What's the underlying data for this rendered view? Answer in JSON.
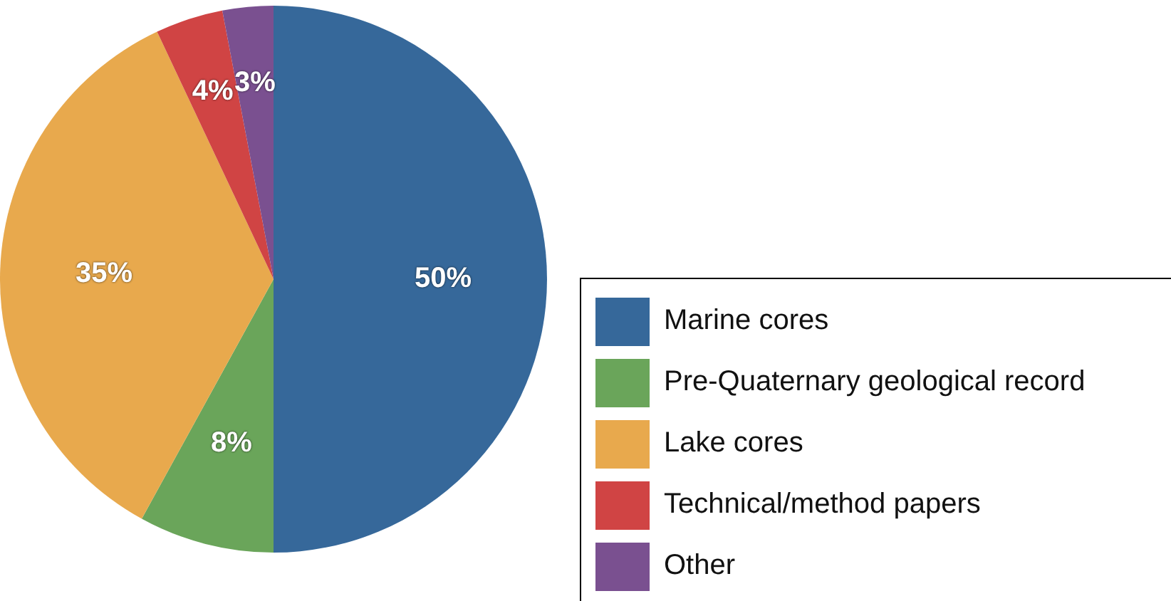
{
  "chart_data": {
    "type": "pie",
    "categories": [
      "Marine cores",
      "Pre-Quaternary geological record",
      "Lake cores",
      "Technical/method papers",
      "Other"
    ],
    "values": [
      50,
      8,
      35,
      4,
      3
    ],
    "colors": [
      "#36689a",
      "#6aa55a",
      "#e8a94d",
      "#d04444",
      "#7a5090"
    ],
    "value_labels": [
      "50%",
      "8%",
      "35%",
      "4%",
      "3%"
    ],
    "legend": "bottom right"
  }
}
